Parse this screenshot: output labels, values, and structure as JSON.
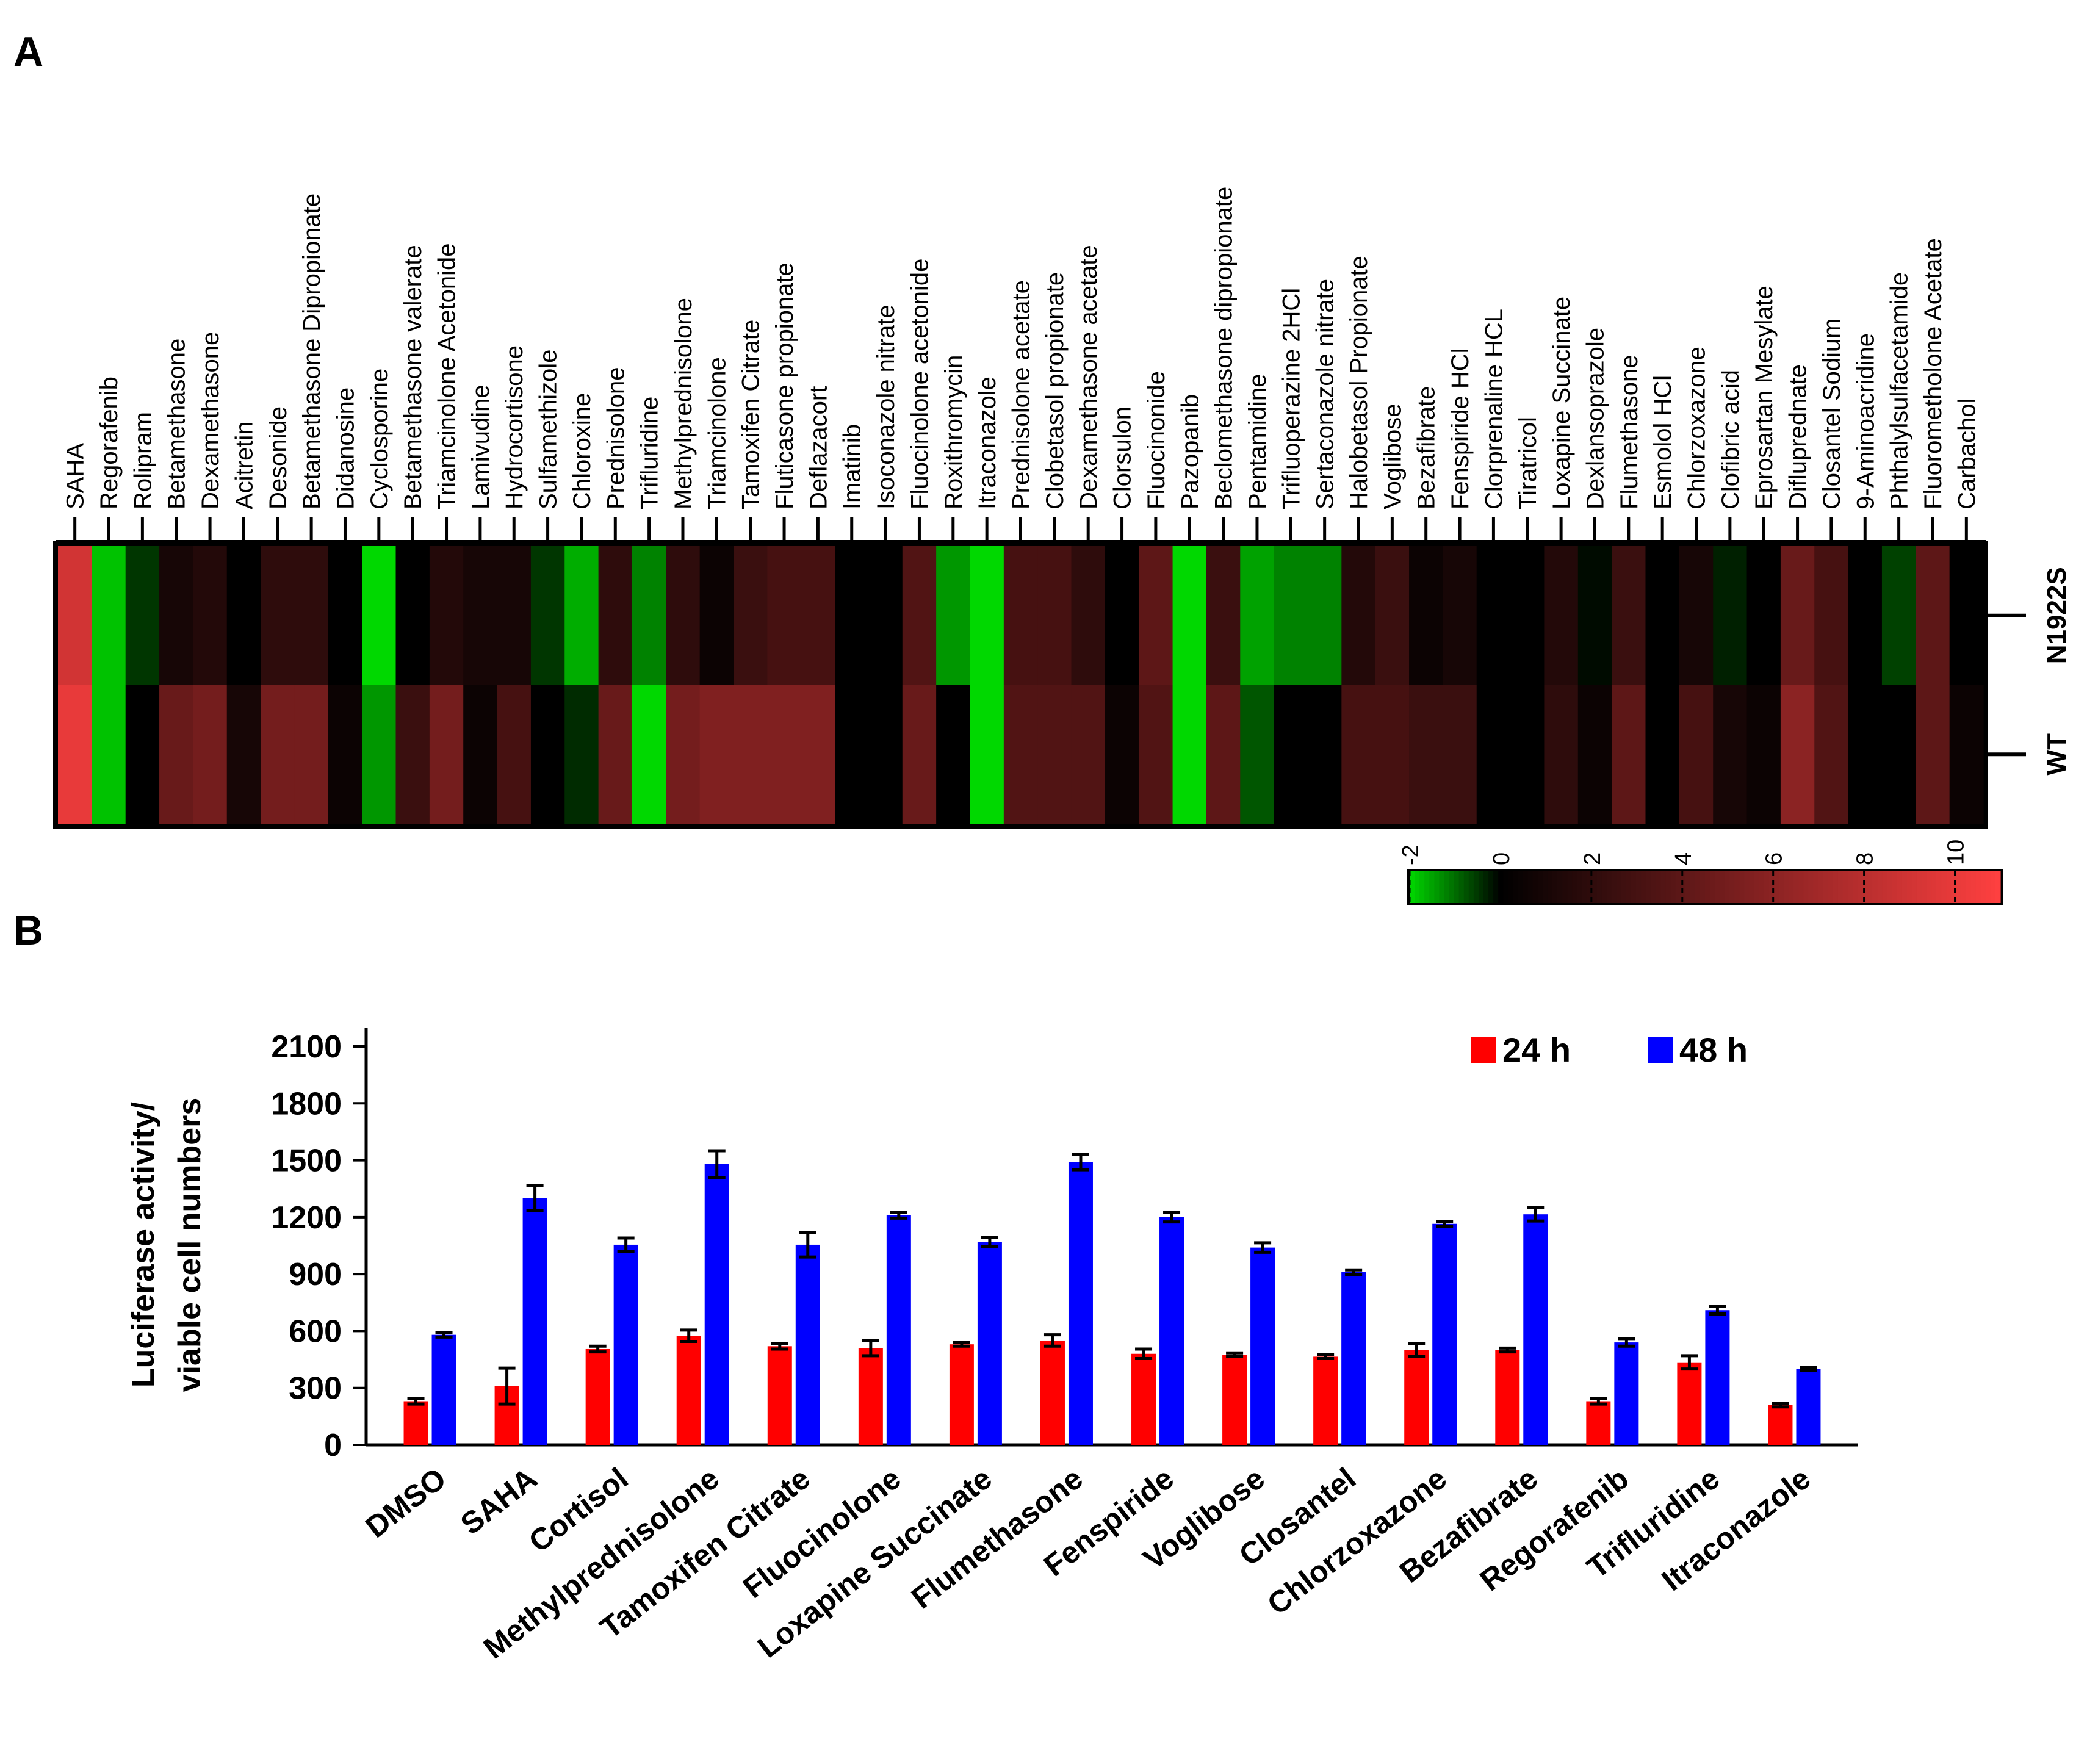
{
  "panels": {
    "a_label": "A",
    "b_label": "B"
  },
  "chart_data": [
    {
      "type": "heatmap",
      "columns": [
        "SAHA",
        "Regorafenib",
        "Rolipram",
        "Betamethasone",
        "Dexamethasone",
        "Acitretin",
        "Desonide",
        "Betamethasone Dipropionate",
        "Didanosine",
        "Cyclosporine",
        "Betamethasone valerate",
        "Triamcinolone Acetonide",
        "Lamivudine",
        "Hydrocortisone",
        "Sulfamethizole",
        "Chloroxine",
        "Prednisolone",
        "Trifluridine",
        "Methylprednisolone",
        "Triamcinolone",
        "Tamoxifen Citrate",
        "Fluticasone propionate",
        "Deflazacort",
        "Imatinib",
        "Isoconazole nitrate",
        "Fluocinolone acetonide",
        "Roxithromycin",
        "Itraconazole",
        "Prednisolone acetate",
        "Clobetasol propionate",
        "Dexamethasone acetate",
        "Clorsulon",
        "Fluocinonide",
        "Pazopanib",
        "Beclomethasone dipropionate",
        "Pentamidine",
        "Trifluoperazine 2HCl",
        "Sertaconazole nitrate",
        "Halobetasol Propionate",
        "Voglibose",
        "Bezafibrate",
        "Fenspiride HCl",
        "Clorprenaline HCL",
        "Tiratricol",
        "Loxapine Succinate",
        "Dexlansoprazole",
        "Flumethasone",
        "Esmolol HCl",
        "Chlorzoxazone",
        "Clofibric acid",
        "Eprosartan Mesylate",
        "Difluprednate",
        "Closantel Sodium",
        "9-Aminoacridine",
        "Phthalylsulfacetamide",
        "Fluorometholone Acetate",
        "Carbachol"
      ],
      "rows": [
        "N1922S",
        "WT"
      ],
      "values": [
        [
          9,
          -1.8,
          -0.5,
          1,
          1.5,
          0,
          2,
          2,
          0,
          -2,
          0,
          1.5,
          1,
          1,
          -0.5,
          -1.6,
          2,
          -1.2,
          2,
          0.5,
          2.5,
          3,
          3,
          0,
          0,
          3.5,
          -1.4,
          -2,
          3,
          3,
          2,
          0,
          4,
          -2,
          2.5,
          -1.5,
          -1.2,
          -1.2,
          1.5,
          2.5,
          0.5,
          1,
          0,
          0,
          1.5,
          -0.1,
          2.5,
          0,
          1,
          -0.3,
          0,
          4.5,
          3,
          0,
          -0.6,
          4,
          0
        ],
        [
          10,
          -1.8,
          0,
          4.5,
          5,
          1,
          5,
          5,
          0.5,
          -1.4,
          2.5,
          5,
          0.5,
          3,
          0,
          -0.4,
          4.5,
          -2,
          5,
          5.5,
          5.5,
          5.5,
          5.5,
          0,
          0,
          4.5,
          0,
          -2,
          3.5,
          3.5,
          3.5,
          0.5,
          3.5,
          -2,
          4,
          -0.8,
          0,
          0,
          3,
          3,
          2.5,
          2.5,
          0,
          0,
          2,
          0.5,
          4,
          0,
          3,
          1,
          0.5,
          6,
          3.5,
          0,
          0,
          4,
          0.5
        ]
      ],
      "scale": {
        "min": -2,
        "max": 11,
        "ticks": [
          "-2",
          "0",
          "2",
          "4",
          "6",
          "8",
          "10"
        ],
        "colors": {
          "low": "#00d800",
          "mid": "#000000",
          "high": "#ff4040"
        }
      }
    },
    {
      "type": "bar",
      "categories": [
        "DMSO",
        "SAHA",
        "Cortisol",
        "Methylprednisolone",
        "Tamoxifen Citrate",
        "Fluocinolone",
        "Loxapine Succinate",
        "Flumethasone",
        "Fenspiride",
        "Voglibose",
        "Closantel",
        "Chlorzoxazone",
        "Bezafibrate",
        "Regorafenib",
        "Trifluridine",
        "Itraconazole"
      ],
      "series": [
        {
          "name": "24 h",
          "color": "#ff0000",
          "values": [
            230,
            310,
            505,
            575,
            520,
            510,
            530,
            550,
            480,
            475,
            465,
            500,
            500,
            230,
            435,
            210
          ],
          "errors": [
            15,
            95,
            15,
            30,
            15,
            40,
            10,
            30,
            25,
            10,
            10,
            35,
            10,
            15,
            35,
            10
          ]
        },
        {
          "name": "48 h",
          "color": "#0000ff",
          "values": [
            580,
            1300,
            1055,
            1480,
            1055,
            1210,
            1070,
            1490,
            1200,
            1040,
            910,
            1165,
            1215,
            540,
            710,
            400
          ],
          "errors": [
            12,
            65,
            35,
            70,
            65,
            15,
            25,
            40,
            25,
            25,
            12,
            12,
            35,
            20,
            20,
            8
          ]
        }
      ],
      "ylabel_lines": [
        "Luciferase activity/",
        "viable cell numbers"
      ],
      "yticks": [
        "0",
        "300",
        "600",
        "900",
        "1200",
        "1500",
        "1800",
        "2100"
      ],
      "ylim": [
        0,
        2100
      ],
      "legend": {
        "items": [
          "24 h",
          "48 h"
        ],
        "placement": "top-right"
      }
    }
  ]
}
